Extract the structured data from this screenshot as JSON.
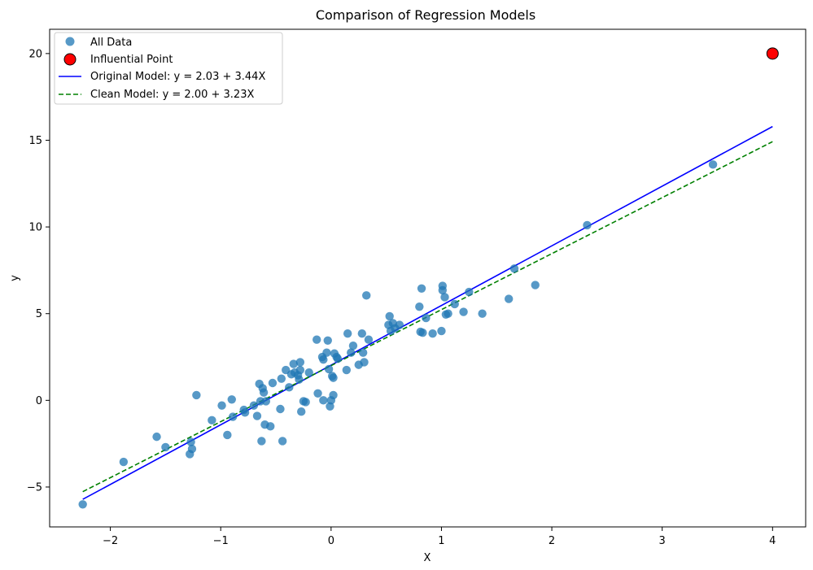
{
  "chart_data": {
    "type": "scatter",
    "title": "Comparison of Regression Models",
    "xlabel": "X",
    "ylabel": "y",
    "xlim": [
      -2.55,
      4.3
    ],
    "ylim": [
      -7.3,
      21.4
    ],
    "xticks": [
      -2,
      -1,
      0,
      1,
      2,
      3,
      4
    ],
    "yticks": [
      -5,
      0,
      5,
      10,
      15,
      20
    ],
    "xtick_labels": [
      "−2",
      "−1",
      "0",
      "1",
      "2",
      "3",
      "4"
    ],
    "ytick_labels": [
      "−5",
      "0",
      "5",
      "10",
      "15",
      "20"
    ],
    "grid": false,
    "legend_position": "top-left",
    "colors": {
      "points": "#1f77b4",
      "influential_fill": "#ff0000",
      "influential_edge": "#000000",
      "original_line": "#0000ff",
      "clean_line": "#008000"
    },
    "series": [
      {
        "name": "All Data",
        "kind": "scatter",
        "points": [
          [
            -2.25,
            -6.0
          ],
          [
            -1.88,
            -3.55
          ],
          [
            -1.58,
            -2.1
          ],
          [
            -1.5,
            -2.7
          ],
          [
            -1.28,
            -3.1
          ],
          [
            -1.27,
            -2.4
          ],
          [
            -1.26,
            -2.8
          ],
          [
            -1.22,
            0.3
          ],
          [
            -1.08,
            -1.15
          ],
          [
            -0.99,
            -0.3
          ],
          [
            -0.94,
            -2.0
          ],
          [
            -0.9,
            0.05
          ],
          [
            -0.89,
            -0.95
          ],
          [
            -0.79,
            -0.55
          ],
          [
            -0.78,
            -0.7
          ],
          [
            -0.7,
            -0.3
          ],
          [
            -0.67,
            -0.9
          ],
          [
            -0.65,
            0.95
          ],
          [
            -0.64,
            -0.05
          ],
          [
            -0.63,
            -2.35
          ],
          [
            -0.62,
            0.7
          ],
          [
            -0.61,
            0.45
          ],
          [
            -0.6,
            -1.4
          ],
          [
            -0.59,
            -0.05
          ],
          [
            -0.55,
            -1.5
          ],
          [
            -0.53,
            1.0
          ],
          [
            -0.46,
            -0.5
          ],
          [
            -0.45,
            1.25
          ],
          [
            -0.44,
            -2.35
          ],
          [
            -0.41,
            1.75
          ],
          [
            -0.38,
            0.75
          ],
          [
            -0.36,
            1.5
          ],
          [
            -0.34,
            2.1
          ],
          [
            -0.33,
            1.6
          ],
          [
            -0.3,
            1.45
          ],
          [
            -0.29,
            1.2
          ],
          [
            -0.28,
            1.75
          ],
          [
            -0.28,
            2.2
          ],
          [
            -0.27,
            -0.65
          ],
          [
            -0.25,
            -0.05
          ],
          [
            -0.23,
            -0.1
          ],
          [
            -0.2,
            1.6
          ],
          [
            -0.13,
            3.5
          ],
          [
            -0.12,
            0.4
          ],
          [
            -0.08,
            2.5
          ],
          [
            -0.07,
            2.35
          ],
          [
            -0.07,
            0.0
          ],
          [
            -0.04,
            2.75
          ],
          [
            -0.03,
            3.45
          ],
          [
            -0.02,
            1.8
          ],
          [
            -0.01,
            -0.35
          ],
          [
            0.0,
            0.0
          ],
          [
            0.01,
            1.4
          ],
          [
            0.02,
            0.3
          ],
          [
            0.02,
            1.3
          ],
          [
            0.03,
            2.7
          ],
          [
            0.05,
            2.5
          ],
          [
            0.06,
            2.4
          ],
          [
            0.14,
            1.75
          ],
          [
            0.15,
            3.85
          ],
          [
            0.18,
            2.75
          ],
          [
            0.2,
            3.15
          ],
          [
            0.25,
            2.05
          ],
          [
            0.28,
            3.85
          ],
          [
            0.29,
            2.75
          ],
          [
            0.3,
            2.2
          ],
          [
            0.32,
            6.05
          ],
          [
            0.34,
            3.5
          ],
          [
            0.52,
            4.35
          ],
          [
            0.53,
            4.85
          ],
          [
            0.54,
            4.0
          ],
          [
            0.56,
            4.45
          ],
          [
            0.58,
            4.15
          ],
          [
            0.62,
            4.35
          ],
          [
            0.8,
            5.4
          ],
          [
            0.81,
            3.95
          ],
          [
            0.82,
            6.45
          ],
          [
            0.83,
            3.9
          ],
          [
            0.86,
            4.75
          ],
          [
            0.92,
            3.85
          ],
          [
            1.0,
            4.0
          ],
          [
            1.01,
            6.6
          ],
          [
            1.01,
            6.35
          ],
          [
            1.03,
            5.95
          ],
          [
            1.04,
            4.95
          ],
          [
            1.06,
            5.0
          ],
          [
            1.12,
            5.55
          ],
          [
            1.2,
            5.1
          ],
          [
            1.25,
            6.25
          ],
          [
            1.37,
            5.0
          ],
          [
            1.61,
            5.85
          ],
          [
            1.66,
            7.6
          ],
          [
            1.85,
            6.65
          ],
          [
            2.32,
            10.1
          ],
          [
            3.46,
            13.6
          ]
        ]
      },
      {
        "name": "Influential Point",
        "kind": "marker",
        "points": [
          [
            4.0,
            20.0
          ]
        ]
      },
      {
        "name": "Original Model: y = 2.03 + 3.44X",
        "kind": "line",
        "intercept": 2.03,
        "slope": 3.44,
        "x_range": [
          -2.25,
          4.0
        ],
        "style": "solid"
      },
      {
        "name": "Clean Model: y = 2.00 + 3.23X",
        "kind": "line",
        "intercept": 2.0,
        "slope": 3.23,
        "x_range": [
          -2.25,
          4.0
        ],
        "style": "dashed"
      }
    ]
  }
}
